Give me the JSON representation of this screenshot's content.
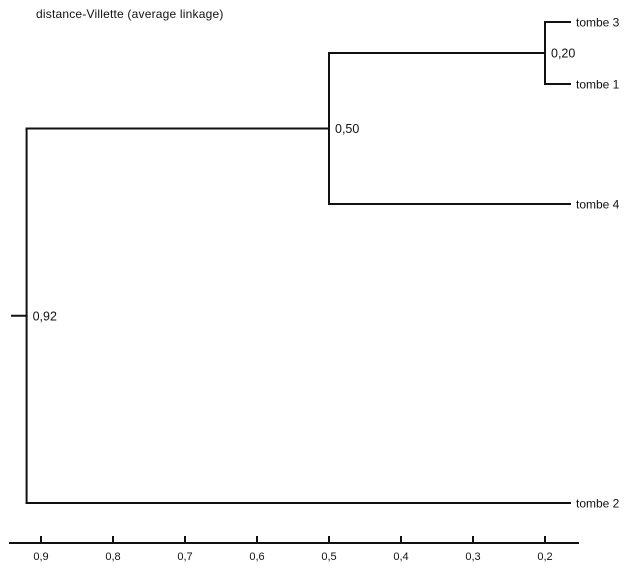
{
  "title": "distance-Villette  (average linkage)",
  "colors": {
    "ink": "#111111",
    "background": "#ffffff"
  },
  "leaves": [
    {
      "id": "t3",
      "label": "tombe 3"
    },
    {
      "id": "t1",
      "label": "tombe 1"
    },
    {
      "id": "t4",
      "label": "tombe 4"
    },
    {
      "id": "t2",
      "label": "tombe 2"
    }
  ],
  "merges": [
    {
      "id": "m1",
      "height": 0.2,
      "label": "0,20",
      "children": [
        "t3",
        "t1"
      ]
    },
    {
      "id": "m2",
      "height": 0.5,
      "label": "0,50",
      "children": [
        "m1",
        "t4"
      ]
    },
    {
      "id": "m3",
      "height": 0.92,
      "label": "0,92",
      "children": [
        "m2",
        "t2"
      ]
    }
  ],
  "axis": {
    "ticks": [
      {
        "value": 0.9,
        "label": "0,9"
      },
      {
        "value": 0.8,
        "label": "0,8"
      },
      {
        "value": 0.7,
        "label": "0,7"
      },
      {
        "value": 0.6,
        "label": "0,6"
      },
      {
        "value": 0.5,
        "label": "0,5"
      },
      {
        "value": 0.4,
        "label": "0,4"
      },
      {
        "value": 0.3,
        "label": "0,3"
      },
      {
        "value": 0.2,
        "label": "0,2"
      }
    ]
  }
}
